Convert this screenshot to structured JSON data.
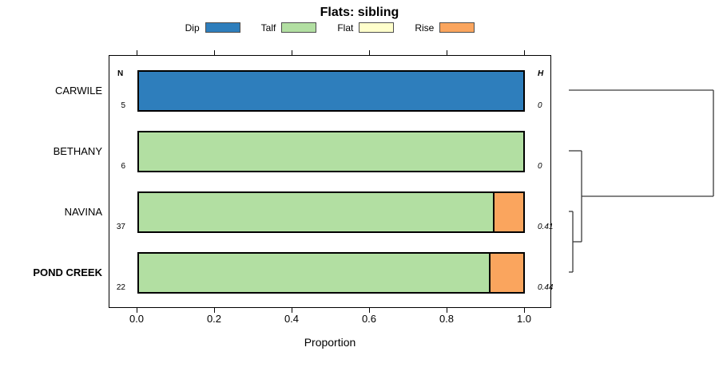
{
  "chart_data": {
    "type": "bar",
    "orientation": "horizontal-stacked",
    "title": "Flats: sibling",
    "xlabel": "Proportion",
    "xlim": [
      0,
      1
    ],
    "x_ticks": [
      "0.0",
      "0.2",
      "0.4",
      "0.6",
      "0.8",
      "1.0"
    ],
    "x_tick_values": [
      0.0,
      0.2,
      0.4,
      0.6,
      0.8,
      1.0
    ],
    "grid": false,
    "legend_position": "top-center",
    "legend": [
      {
        "label": "Dip",
        "color": "#2E7EBC"
      },
      {
        "label": "Talf",
        "color": "#B2DFA2"
      },
      {
        "label": "Flat",
        "color": "#FFFFCC"
      },
      {
        "label": "Rise",
        "color": "#FAA55E"
      }
    ],
    "column_headers": {
      "n": "N",
      "h": "H"
    },
    "categories": [
      "CARWILE",
      "BETHANY",
      "NAVINA",
      "POND CREEK"
    ],
    "rows": [
      {
        "category": "CARWILE",
        "bold": false,
        "n": "5",
        "h": "0",
        "segments": [
          {
            "name": "Dip",
            "value": 1.0,
            "color": "#2E7EBC"
          }
        ]
      },
      {
        "category": "BETHANY",
        "bold": false,
        "n": "6",
        "h": "0",
        "segments": [
          {
            "name": "Talf",
            "value": 1.0,
            "color": "#B2DFA2"
          }
        ]
      },
      {
        "category": "NAVINA",
        "bold": false,
        "n": "37",
        "h": "0.41",
        "segments": [
          {
            "name": "Talf",
            "value": 0.92,
            "color": "#B2DFA2"
          },
          {
            "name": "Rise",
            "value": 0.08,
            "color": "#FAA55E"
          }
        ]
      },
      {
        "category": "POND CREEK",
        "bold": true,
        "n": "22",
        "h": "0.44",
        "segments": [
          {
            "name": "Talf",
            "value": 0.91,
            "color": "#B2DFA2"
          },
          {
            "name": "Rise",
            "value": 0.09,
            "color": "#FAA55E"
          }
        ]
      }
    ],
    "dendrogram": {
      "hierarchy": "(((NAVINA,POND CREEK),BETHANY),CARWILE)",
      "color": "#3a3a3a",
      "segments": [
        [
          22,
          53,
          203,
          53
        ],
        [
          22,
          129,
          38,
          129
        ],
        [
          22,
          205,
          27,
          205
        ],
        [
          22,
          281,
          27,
          281
        ],
        [
          27,
          205,
          27,
          281
        ],
        [
          27,
          243,
          38,
          243
        ],
        [
          38,
          129,
          38,
          243
        ],
        [
          38,
          186,
          203,
          186
        ],
        [
          203,
          53,
          203,
          186
        ]
      ]
    }
  }
}
